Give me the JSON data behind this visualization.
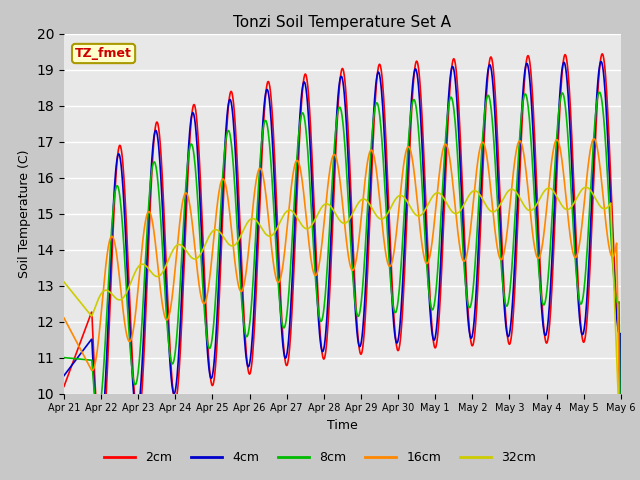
{
  "title": "Tonzi Soil Temperature Set A",
  "xlabel": "Time",
  "ylabel": "Soil Temperature (C)",
  "annotation": "TZ_fmet",
  "ylim": [
    10.0,
    20.0
  ],
  "yticks": [
    10.0,
    11.0,
    12.0,
    13.0,
    14.0,
    15.0,
    16.0,
    17.0,
    18.0,
    19.0,
    20.0
  ],
  "colors": {
    "2cm": "#ff0000",
    "4cm": "#0000cc",
    "8cm": "#00bb00",
    "16cm": "#ff8800",
    "32cm": "#cccc00"
  },
  "xtick_labels": [
    "Apr 21",
    "Apr 22",
    "Apr 23",
    "Apr 24",
    "Apr 25",
    "Apr 26",
    "Apr 27",
    "Apr 28",
    "Apr 29",
    "Apr 30",
    "May 1",
    "May 2",
    "May 3",
    "May 4",
    "May 5",
    "May 6"
  ],
  "figsize": [
    6.4,
    4.8
  ],
  "dpi": 100
}
